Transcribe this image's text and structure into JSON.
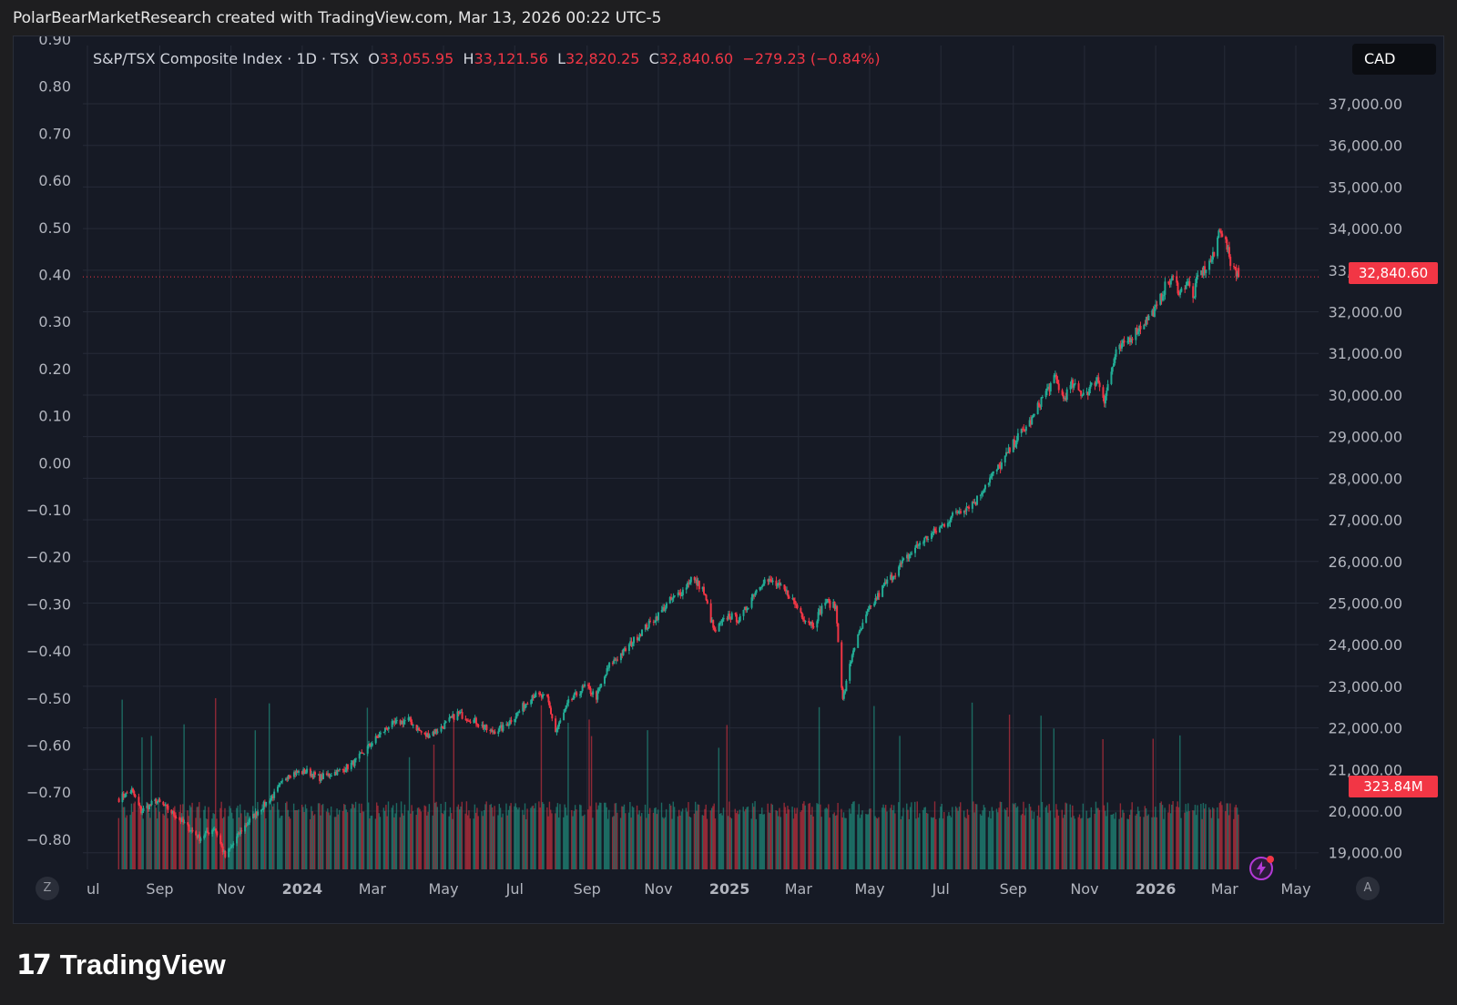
{
  "header": {
    "credit": "PolarBearMarketResearch created with TradingView.com, Mar 13, 2026 00:22 UTC-5"
  },
  "legend": {
    "symbol": "S&P/TSX Composite Index · 1D · TSX",
    "o_label": "O",
    "o_value": "33,055.95",
    "h_label": "H",
    "h_value": "33,121.56",
    "l_label": "L",
    "l_value": "32,820.25",
    "c_label": "C",
    "c_value": "32,840.60",
    "change": "−279.23 (−0.84%)"
  },
  "currency": "CAD",
  "last_price_tag": "32,840.60",
  "volume_tag": "323.84M",
  "corner_left": "Z",
  "corner_right": "A",
  "icons": {
    "alert": "lightning-alert-icon",
    "logo": "tradingview-logo-icon"
  },
  "logo": {
    "mark": "17",
    "text": "TradingView"
  },
  "colors": {
    "up": "#22ab94",
    "down": "#f23645",
    "background": "#161a25",
    "grid": "#262b38"
  },
  "chart_data": {
    "type": "candlestick",
    "symbol": "S&P/TSX Composite Index",
    "interval": "1D",
    "currency": "CAD",
    "ylim": [
      18600,
      38400
    ],
    "right_axis_ticks": [
      "37,000.00",
      "36,000.00",
      "35,000.00",
      "34,000.00",
      "33,000.00",
      "32,000.00",
      "31,000.00",
      "30,000.00",
      "29,000.00",
      "28,000.00",
      "27,000.00",
      "26,000.00",
      "25,000.00",
      "24,000.00",
      "23,000.00",
      "22,000.00",
      "21,000.00",
      "20,000.00",
      "19,000.00"
    ],
    "left_axis_ticks": [
      "0.90",
      "0.80",
      "0.70",
      "0.60",
      "0.50",
      "0.40",
      "0.30",
      "0.20",
      "0.10",
      "0.00",
      "−0.10",
      "−0.20",
      "−0.30",
      "−0.40",
      "−0.50",
      "−0.60",
      "−0.70",
      "−0.80"
    ],
    "x_axis_labels": [
      "ul",
      "Sep",
      "Nov",
      "2024",
      "Mar",
      "May",
      "Jul",
      "Sep",
      "Nov",
      "2025",
      "Mar",
      "May",
      "Jul",
      "Sep",
      "Nov",
      "2026",
      "Mar",
      "May"
    ],
    "x_axis_bold": [
      "2024",
      "2025",
      "2026"
    ],
    "x_axis_months": [
      "2023-07",
      "2023-09",
      "2023-11",
      "2024-01",
      "2024-03",
      "2024-05",
      "2024-07",
      "2024-09",
      "2024-11",
      "2025-01",
      "2025-03",
      "2025-05",
      "2025-07",
      "2025-09",
      "2025-11",
      "2026-01",
      "2026-03",
      "2026-05"
    ],
    "close_path": [
      [
        "2023-07-28",
        20300
      ],
      [
        "2023-08-08",
        20500
      ],
      [
        "2023-08-16",
        20000
      ],
      [
        "2023-08-29",
        20250
      ],
      [
        "2023-09-08",
        20050
      ],
      [
        "2023-09-20",
        19750
      ],
      [
        "2023-10-05",
        19350
      ],
      [
        "2023-10-18",
        19600
      ],
      [
        "2023-10-27",
        18900
      ],
      [
        "2023-11-10",
        19550
      ],
      [
        "2023-11-24",
        20000
      ],
      [
        "2023-12-08",
        20400
      ],
      [
        "2023-12-20",
        20900
      ],
      [
        "2024-01-05",
        20950
      ],
      [
        "2024-01-16",
        20800
      ],
      [
        "2024-02-05",
        21000
      ],
      [
        "2024-02-16",
        21200
      ],
      [
        "2024-03-01",
        21650
      ],
      [
        "2024-03-15",
        22050
      ],
      [
        "2024-04-01",
        22200
      ],
      [
        "2024-04-15",
        21800
      ],
      [
        "2024-04-29",
        22000
      ],
      [
        "2024-05-13",
        22350
      ],
      [
        "2024-05-29",
        22150
      ],
      [
        "2024-06-10",
        21900
      ],
      [
        "2024-06-21",
        22000
      ],
      [
        "2024-07-05",
        22400
      ],
      [
        "2024-07-16",
        22800
      ],
      [
        "2024-07-29",
        22700
      ],
      [
        "2024-08-05",
        21900
      ],
      [
        "2024-08-16",
        22600
      ],
      [
        "2024-08-30",
        23000
      ],
      [
        "2024-09-09",
        22750
      ],
      [
        "2024-09-20",
        23500
      ],
      [
        "2024-10-03",
        23850
      ],
      [
        "2024-10-17",
        24300
      ],
      [
        "2024-10-30",
        24650
      ],
      [
        "2024-11-11",
        25050
      ],
      [
        "2024-11-22",
        25300
      ],
      [
        "2024-11-29",
        25600
      ],
      [
        "2024-12-09",
        25350
      ],
      [
        "2024-12-19",
        24300
      ],
      [
        "2024-12-31",
        24700
      ],
      [
        "2025-01-10",
        24600
      ],
      [
        "2025-01-22",
        25250
      ],
      [
        "2025-01-30",
        25550
      ],
      [
        "2025-02-07",
        25500
      ],
      [
        "2025-02-21",
        25200
      ],
      [
        "2025-03-07",
        24600
      ],
      [
        "2025-03-14",
        24500
      ],
      [
        "2025-03-24",
        25050
      ],
      [
        "2025-04-02",
        24900
      ],
      [
        "2025-04-08",
        22650
      ],
      [
        "2025-04-17",
        23900
      ],
      [
        "2025-04-30",
        24800
      ],
      [
        "2025-05-13",
        25400
      ],
      [
        "2025-05-30",
        26000
      ],
      [
        "2025-06-13",
        26450
      ],
      [
        "2025-06-30",
        26800
      ],
      [
        "2025-07-15",
        27200
      ],
      [
        "2025-07-31",
        27450
      ],
      [
        "2025-08-08",
        27850
      ],
      [
        "2025-08-22",
        28350
      ],
      [
        "2025-09-05",
        29000
      ],
      [
        "2025-09-17",
        29400
      ],
      [
        "2025-09-26",
        29950
      ],
      [
        "2025-10-07",
        30400
      ],
      [
        "2025-10-14",
        29900
      ],
      [
        "2025-10-21",
        30250
      ],
      [
        "2025-10-29",
        30050
      ],
      [
        "2025-11-04",
        30100
      ],
      [
        "2025-11-12",
        30400
      ],
      [
        "2025-11-18",
        29900
      ],
      [
        "2025-11-28",
        31000
      ],
      [
        "2025-12-09",
        31350
      ],
      [
        "2025-12-19",
        31650
      ],
      [
        "2026-01-02",
        32100
      ],
      [
        "2026-01-09",
        32600
      ],
      [
        "2026-01-16",
        32800
      ],
      [
        "2026-01-22",
        32450
      ],
      [
        "2026-01-28",
        32750
      ],
      [
        "2026-02-02",
        32300
      ],
      [
        "2026-02-06",
        32850
      ],
      [
        "2026-02-13",
        33050
      ],
      [
        "2026-02-20",
        33350
      ],
      [
        "2026-02-25",
        34050
      ],
      [
        "2026-03-02",
        33650
      ],
      [
        "2026-03-06",
        33200
      ],
      [
        "2026-03-10",
        33050
      ],
      [
        "2026-03-13",
        32840.6
      ]
    ],
    "last_candle": {
      "date": "2026-03-13",
      "open": 33055.95,
      "high": 33121.56,
      "low": 32820.25,
      "close": 32840.6
    },
    "current_volume": "323.84M"
  }
}
